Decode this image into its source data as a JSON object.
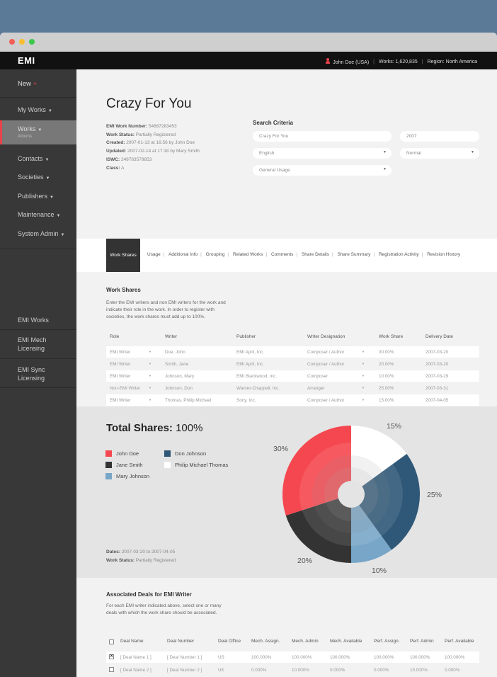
{
  "app": {
    "logo": "EMI"
  },
  "topbar": {
    "user": "John Doe (USA)",
    "works": "Works: 1,620,835",
    "region": "Region: North America",
    "separator": "|"
  },
  "sidebar": {
    "new": "New",
    "new_plus": "+",
    "items": [
      {
        "label": "My Works"
      },
      {
        "label": "Works",
        "sub": "Albums"
      },
      {
        "label": "Contacts"
      },
      {
        "label": "Societies"
      },
      {
        "label": "Publishers"
      },
      {
        "label": "Maintenance"
      },
      {
        "label": "System Admin"
      }
    ],
    "bottom": [
      {
        "label": "EMI Works"
      },
      {
        "label": "EMI Mech Licensing"
      },
      {
        "label": "EMI Sync Licensing"
      }
    ]
  },
  "work": {
    "title": "Crazy For You",
    "meta": [
      {
        "label": "EMI Work Number:",
        "value": "54687283453"
      },
      {
        "label": "Work Status:",
        "value": "Partially Registered"
      },
      {
        "label": "Created:",
        "value": "2007-01-13 at 16:56 by John Doe"
      },
      {
        "label": "Updated:",
        "value": "2007-02-14 at 17:18 by Mary Smith"
      },
      {
        "label": "ISWC:",
        "value": "249783579853"
      },
      {
        "label": "Class:",
        "value": "A"
      }
    ]
  },
  "search": {
    "title": "Search Criteria",
    "title_value": "Crazy For You",
    "year": "2007",
    "language": "English",
    "priority": "Normal",
    "usage": "General Usage"
  },
  "tabs": {
    "active": "Work Shares",
    "items": [
      "Usage",
      "Additional Info",
      "Grouping",
      "Related Works",
      "Comments",
      "Share Details",
      "Share Summary",
      "Registration Activity",
      "Revision History"
    ]
  },
  "shares": {
    "title": "Work Shares",
    "description": "Enter the EMI writers and non EMI writers for the work and indicate their role in the work. In order to register with societies, the work shares must add up to 100%.",
    "columns": [
      "Role",
      "Writer",
      "Publisher",
      "Writer Designation",
      "Work Share",
      "Delivery Date"
    ],
    "rows": [
      {
        "role": "EMI Writer",
        "writer": "Doe, John",
        "publisher": "EMI April, Inc.",
        "designation": "Composer / Author",
        "share": "30.00%",
        "date": "2007-03-20"
      },
      {
        "role": "EMI Writer",
        "writer": "Smith, Jane",
        "publisher": "EMI April, Inc.",
        "designation": "Composer / Author",
        "share": "20.00%",
        "date": "2007-03-20"
      },
      {
        "role": "EMI Writer",
        "writer": "Johnson, Mary",
        "publisher": "EMI Blackwood, Inc.",
        "designation": "Composer",
        "share": "10.00%",
        "date": "2007-03-29"
      },
      {
        "role": "Non-EMI Writer",
        "writer": "Johnson, Don",
        "publisher": "Warner-Chappell, Inc.",
        "designation": "Arranger",
        "share": "25.00%",
        "date": "2007-03-31"
      },
      {
        "role": "EMI Writer",
        "writer": "Thomas, Philip Michael",
        "publisher": "Sony, Inc.",
        "designation": "Composer / Author",
        "share": "15.00%",
        "date": "2007-04-05"
      }
    ]
  },
  "summary": {
    "total_label": "Total Shares:",
    "total_value": "100%",
    "dates_label": "Dates:",
    "dates_value": "2007-03-20 to 2007-04-05",
    "status_label": "Work Status:",
    "status_value": "Partially Registered"
  },
  "chart_data": {
    "type": "pie",
    "series": [
      {
        "name": "John Doe",
        "value": 30,
        "label": "30%",
        "color": "#f5474f"
      },
      {
        "name": "Jane Smith",
        "value": 20,
        "label": "20%",
        "color": "#333333"
      },
      {
        "name": "Mary Johnson",
        "value": 10,
        "label": "10%",
        "color": "#78a6c8"
      },
      {
        "name": "Don Johnson",
        "value": 25,
        "label": "25%",
        "color": "#2e5778"
      },
      {
        "name": "Philip Michael Thomas",
        "value": 15,
        "label": "15%",
        "color": "#ffffff"
      }
    ]
  },
  "deals": {
    "title": "Associated Deals for EMI Writer",
    "description": "For each EMI writer indicated above, select one or many deals with which the work share should be associated.",
    "columns": [
      "Deal Name",
      "Deal Number",
      "Deal Office",
      "Mech. Assign.",
      "Mech. Admin",
      "Mech. Available",
      "Perf. Assign.",
      "Perf. Admin",
      "Perf. Available"
    ],
    "rows": [
      {
        "checked": true,
        "check_mark": "✕",
        "values": [
          "[ Deal Name 1 ]",
          "[ Deal Number 1 ]",
          "US",
          "100.000%",
          "100.000%",
          "100.000%",
          "100.000%",
          "100.000%",
          "100.000%"
        ]
      },
      {
        "checked": false,
        "check_mark": "",
        "values": [
          "[ Deal Name 2 ]",
          "[ Deal Number 2 ]",
          "UK",
          "0.000%",
          "10.000%",
          "0.000%",
          "0.000%",
          "10.000%",
          "0.000%"
        ]
      }
    ]
  },
  "colors": {
    "accent": "#e8434a",
    "sidebar": "#383838",
    "topbar": "#111111"
  }
}
